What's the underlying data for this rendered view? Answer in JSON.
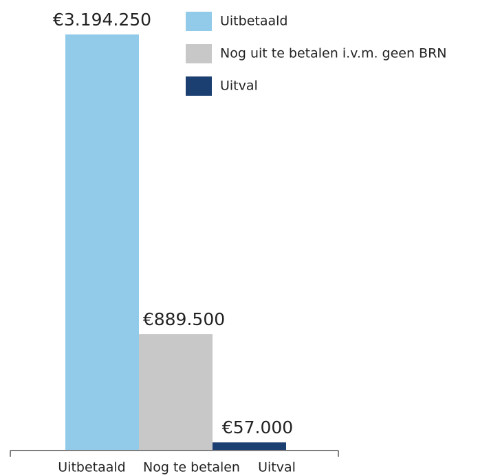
{
  "chart_data": {
    "type": "bar",
    "categories": [
      "Uitbetaald",
      "Nog te betalen",
      "Uitval"
    ],
    "values": [
      3194250,
      889500,
      57000
    ],
    "value_labels": [
      "€3.194.250",
      "€889.500",
      "€57.000"
    ],
    "colors": [
      "#92cbe9",
      "#c8c8c8",
      "#1c3f72"
    ],
    "legend": [
      "Uitbetaald",
      "Nog uit te betalen i.v.m. geen BRN",
      "Uitval"
    ]
  }
}
